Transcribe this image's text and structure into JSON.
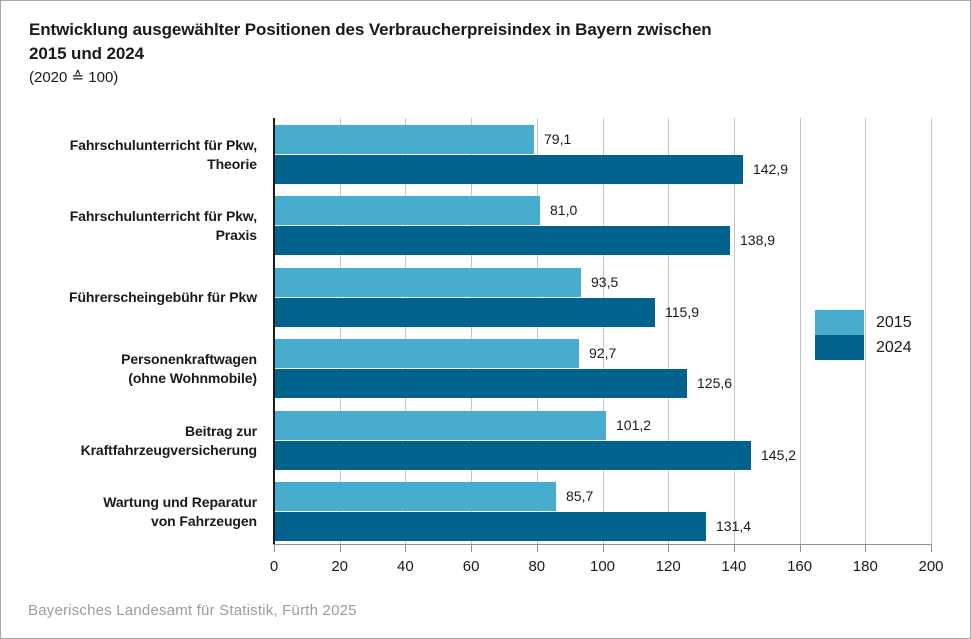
{
  "chart_data": {
    "type": "bar",
    "orientation": "horizontal",
    "title": "Entwicklung ausgewählter Positionen des Verbraucherpreisindex in Bayern zwischen 2015 und 2024",
    "title_lines": [
      "Entwicklung ausgewählter Positionen des Verbraucherpreisindex in Bayern zwischen",
      "2015 und 2024"
    ],
    "subtitle": "(2020 ≙ 100)",
    "categories": [
      "Fahrschulunterricht für Pkw, Theorie",
      "Fahrschulunterricht für Pkw, Praxis",
      "Führerscheingebühr für Pkw",
      "Personenkraftwagen (ohne Wohnmobile)",
      "Beitrag zur Kraftfahrzeugversicherung",
      "Wartung und Reparatur von Fahrzeugen"
    ],
    "category_lines": [
      [
        "Fahrschulunterricht für Pkw,",
        "Theorie"
      ],
      [
        "Fahrschulunterricht für Pkw,",
        "Praxis"
      ],
      [
        "Führerscheingebühr für Pkw"
      ],
      [
        "Personenkraftwagen",
        "(ohne Wohnmobile)"
      ],
      [
        "Beitrag zur",
        "Kraftfahrzeugversicherung"
      ],
      [
        "Wartung und Reparatur",
        "von Fahrzeugen"
      ]
    ],
    "series": [
      {
        "name": "2015",
        "color": "#48acce",
        "values": [
          79.1,
          81.0,
          93.5,
          92.7,
          101.2,
          85.7
        ],
        "labels": [
          "79,1",
          "81,0",
          "93,5",
          "92,7",
          "101,2",
          "85,7"
        ]
      },
      {
        "name": "2024",
        "color": "#02648e",
        "values": [
          142.9,
          138.9,
          115.9,
          125.6,
          145.2,
          131.4
        ],
        "labels": [
          "142,9",
          "138,9",
          "115,9",
          "125,6",
          "145,2",
          "131,4"
        ]
      }
    ],
    "xlim": [
      0,
      200
    ],
    "xticks": [
      0,
      20,
      40,
      60,
      80,
      100,
      120,
      140,
      160,
      180,
      200
    ],
    "grid": true,
    "legend_position": "right-inside",
    "source": "Bayerisches Landesamt für Statistik, Fürth 2025",
    "colors": {
      "grid": "#c6c6c6",
      "axis": "#1a1a1a",
      "x_axis_line": "#8f8f8f",
      "text": "#1a1a1a",
      "source_text": "#9c9c9c",
      "background": "#ffffff",
      "border": "#a8a8a8"
    }
  }
}
